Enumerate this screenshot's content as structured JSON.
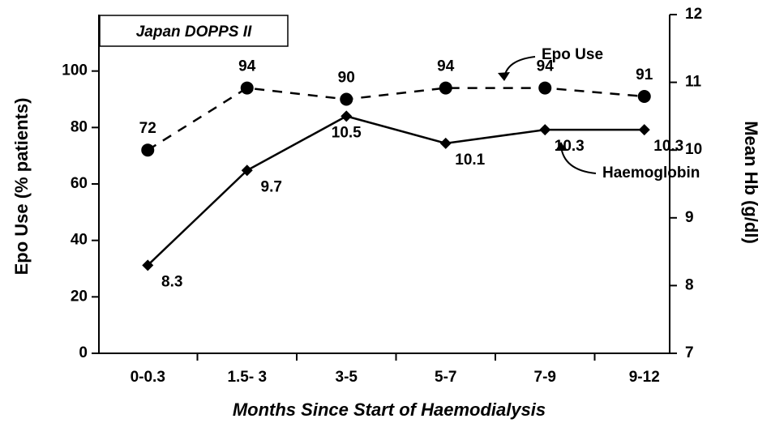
{
  "chart_data": {
    "type": "line",
    "title": "Japan DOPPS II",
    "x_label": "Months Since Start of Haemodialysis",
    "y_label": "Epo Use (% patients)",
    "y2_label": "Mean Hb (g/dl)",
    "categories": [
      "0-0.3",
      "1.5- 3",
      "3-5",
      "5-7",
      "7-9",
      "9-12"
    ],
    "series": [
      {
        "name": "Epo Use",
        "color": "#000000",
        "values": [
          72,
          94,
          90,
          94,
          94,
          91
        ],
        "marker": "circle",
        "dashed": true
      },
      {
        "name": "Haemoglobin",
        "color": "#000000",
        "values": [
          8.3,
          9.7,
          10.5,
          10.1,
          10.3,
          10.3
        ],
        "marker": "diamond",
        "dashed": false,
        "axis": "y2"
      }
    ],
    "ylim": [
      0,
      120
    ],
    "yticks": [
      0,
      20,
      40,
      60,
      80,
      100
    ],
    "y2lim": [
      7,
      12
    ],
    "y2ticks": [
      7,
      8,
      9,
      10,
      11,
      12
    ]
  }
}
